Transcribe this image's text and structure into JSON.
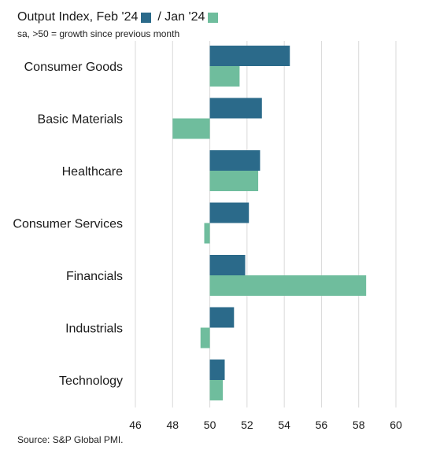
{
  "chart_data": {
    "type": "bar",
    "orientation": "horizontal",
    "title": "Output Index, Feb '24",
    "subtitle": "sa, >50 = growth since previous month",
    "source": "Source: S&P Global PMI.",
    "categories": [
      "Consumer Goods",
      "Basic Materials",
      "Healthcare",
      "Consumer Services",
      "Financials",
      "Industrials",
      "Technology"
    ],
    "series": [
      {
        "name": "Feb '24",
        "color": "#2b6a8a",
        "values": [
          54.3,
          52.8,
          52.7,
          52.1,
          51.9,
          51.3,
          50.8
        ]
      },
      {
        "name": "/ Jan '24",
        "color": "#6fbd9d",
        "values": [
          51.6,
          48.0,
          52.6,
          49.7,
          58.4,
          49.5,
          50.7
        ]
      }
    ],
    "baseline": 50,
    "xlim": [
      46,
      60
    ],
    "xticks": [
      46,
      48,
      50,
      52,
      54,
      56,
      58,
      60
    ],
    "grid": true
  }
}
